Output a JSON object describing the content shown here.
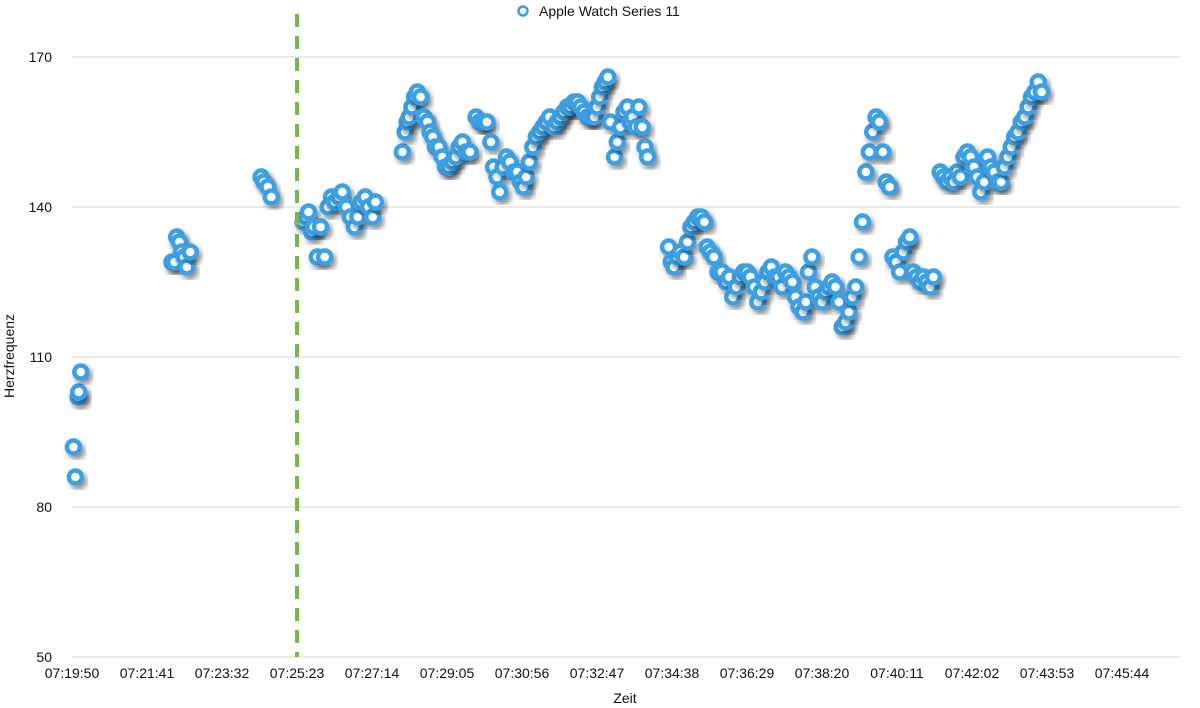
{
  "chart_data": {
    "type": "scatter",
    "title": "",
    "xlabel": "Zeit",
    "ylabel": "Herzfrequenz",
    "ylim": [
      50,
      170
    ],
    "yticks": [
      50,
      80,
      110,
      140,
      170
    ],
    "xticks": [
      "07:19:50",
      "07:21:41",
      "07:23:32",
      "07:25:23",
      "07:27:14",
      "07:29:05",
      "07:30:56",
      "07:32:47",
      "07:34:38",
      "07:36:29",
      "07:38:20",
      "07:40:11",
      "07:42:02",
      "07:43:53",
      "07:45:44"
    ],
    "xlim": [
      "07:19:50",
      "07:47:20"
    ],
    "grid": "horizontal",
    "legend_position": "top-center",
    "marker_line": {
      "x": "07:25:23",
      "color": "#7ab648",
      "style": "dashed"
    },
    "series": [
      {
        "name": "Apple Watch Series 11",
        "color": "#3aa0e6",
        "points": [
          [
            "07:19:52",
            92
          ],
          [
            "07:19:55",
            86
          ],
          [
            "07:19:59",
            102
          ],
          [
            "07:20:00",
            103
          ],
          [
            "07:20:03",
            107
          ],
          [
            "07:22:18",
            129
          ],
          [
            "07:22:22",
            129
          ],
          [
            "07:22:25",
            134
          ],
          [
            "07:22:29",
            133
          ],
          [
            "07:22:32",
            131
          ],
          [
            "07:22:36",
            130
          ],
          [
            "07:22:40",
            128
          ],
          [
            "07:22:45",
            131
          ],
          [
            "07:24:30",
            146
          ],
          [
            "07:24:34",
            145
          ],
          [
            "07:24:40",
            144
          ],
          [
            "07:24:45",
            142
          ],
          [
            "07:25:32",
            137
          ],
          [
            "07:25:36",
            138
          ],
          [
            "07:25:40",
            139
          ],
          [
            "07:25:45",
            135
          ],
          [
            "07:25:48",
            136
          ],
          [
            "07:25:53",
            130
          ],
          [
            "07:25:58",
            136
          ],
          [
            "07:26:04",
            130
          ],
          [
            "07:26:09",
            140
          ],
          [
            "07:26:14",
            142
          ],
          [
            "07:26:19",
            141
          ],
          [
            "07:26:25",
            142
          ],
          [
            "07:26:30",
            143
          ],
          [
            "07:26:36",
            140
          ],
          [
            "07:26:42",
            138
          ],
          [
            "07:26:48",
            136
          ],
          [
            "07:26:53",
            138
          ],
          [
            "07:26:58",
            141
          ],
          [
            "07:27:04",
            142
          ],
          [
            "07:27:09",
            140
          ],
          [
            "07:27:15",
            138
          ],
          [
            "07:27:19",
            141
          ],
          [
            "07:27:59",
            151
          ],
          [
            "07:28:03",
            155
          ],
          [
            "07:28:06",
            157
          ],
          [
            "07:28:09",
            158
          ],
          [
            "07:28:13",
            160
          ],
          [
            "07:28:17",
            162
          ],
          [
            "07:28:21",
            163
          ],
          [
            "07:28:26",
            162
          ],
          [
            "07:28:31",
            158
          ],
          [
            "07:28:36",
            157
          ],
          [
            "07:28:40",
            155
          ],
          [
            "07:28:44",
            154
          ],
          [
            "07:28:48",
            152
          ],
          [
            "07:28:53",
            152
          ],
          [
            "07:28:58",
            150
          ],
          [
            "07:29:03",
            148
          ],
          [
            "07:29:08",
            148
          ],
          [
            "07:29:13",
            149
          ],
          [
            "07:29:18",
            150
          ],
          [
            "07:29:23",
            152
          ],
          [
            "07:29:28",
            153
          ],
          [
            "07:29:33",
            151
          ],
          [
            "07:29:39",
            151
          ],
          [
            "07:29:48",
            158
          ],
          [
            "07:29:53",
            157
          ],
          [
            "07:29:58",
            157
          ],
          [
            "07:30:04",
            157
          ],
          [
            "07:30:10",
            153
          ],
          [
            "07:30:14",
            148
          ],
          [
            "07:30:19",
            146
          ],
          [
            "07:30:23",
            143
          ],
          [
            "07:30:28",
            148
          ],
          [
            "07:30:33",
            150
          ],
          [
            "07:30:38",
            149
          ],
          [
            "07:30:44",
            147
          ],
          [
            "07:30:49",
            147
          ],
          [
            "07:30:54",
            145
          ],
          [
            "07:30:58",
            144
          ],
          [
            "07:31:02",
            146
          ],
          [
            "07:31:07",
            149
          ],
          [
            "07:31:12",
            152
          ],
          [
            "07:31:17",
            154
          ],
          [
            "07:31:22",
            155
          ],
          [
            "07:31:27",
            156
          ],
          [
            "07:31:32",
            157
          ],
          [
            "07:31:37",
            158
          ],
          [
            "07:31:43",
            156
          ],
          [
            "07:31:48",
            157
          ],
          [
            "07:31:53",
            158
          ],
          [
            "07:31:58",
            159
          ],
          [
            "07:32:03",
            160
          ],
          [
            "07:32:08",
            160
          ],
          [
            "07:32:13",
            161
          ],
          [
            "07:32:18",
            161
          ],
          [
            "07:32:23",
            160
          ],
          [
            "07:32:28",
            159
          ],
          [
            "07:32:33",
            158
          ],
          [
            "07:32:38",
            158
          ],
          [
            "07:32:43",
            158
          ],
          [
            "07:32:47",
            160
          ],
          [
            "07:32:51",
            162
          ],
          [
            "07:32:55",
            164
          ],
          [
            "07:32:59",
            165
          ],
          [
            "07:33:03",
            166
          ],
          [
            "07:33:07",
            157
          ],
          [
            "07:33:13",
            150
          ],
          [
            "07:33:17",
            153
          ],
          [
            "07:33:22",
            156
          ],
          [
            "07:33:27",
            159
          ],
          [
            "07:33:32",
            160
          ],
          [
            "07:33:36",
            157
          ],
          [
            "07:33:40",
            158
          ],
          [
            "07:33:45",
            156
          ],
          [
            "07:33:49",
            160
          ],
          [
            "07:33:54",
            156
          ],
          [
            "07:33:58",
            152
          ],
          [
            "07:34:02",
            150
          ],
          [
            "07:34:33",
            132
          ],
          [
            "07:34:37",
            129
          ],
          [
            "07:34:41",
            128
          ],
          [
            "07:34:46",
            130
          ],
          [
            "07:34:51",
            131
          ],
          [
            "07:34:56",
            130
          ],
          [
            "07:35:01",
            133
          ],
          [
            "07:35:06",
            136
          ],
          [
            "07:35:11",
            137
          ],
          [
            "07:35:16",
            138
          ],
          [
            "07:35:21",
            138
          ],
          [
            "07:35:26",
            137
          ],
          [
            "07:35:30",
            132
          ],
          [
            "07:35:35",
            131
          ],
          [
            "07:35:40",
            130
          ],
          [
            "07:35:46",
            127
          ],
          [
            "07:35:52",
            127
          ],
          [
            "07:35:58",
            125
          ],
          [
            "07:36:03",
            126
          ],
          [
            "07:36:08",
            122
          ],
          [
            "07:36:13",
            124
          ],
          [
            "07:36:19",
            126
          ],
          [
            "07:36:24",
            127
          ],
          [
            "07:36:29",
            127
          ],
          [
            "07:36:34",
            126
          ],
          [
            "07:36:40",
            124
          ],
          [
            "07:36:45",
            121
          ],
          [
            "07:36:50",
            123
          ],
          [
            "07:36:55",
            125
          ],
          [
            "07:37:00",
            127
          ],
          [
            "07:37:05",
            128
          ],
          [
            "07:37:10",
            126
          ],
          [
            "07:37:16",
            126
          ],
          [
            "07:37:21",
            124
          ],
          [
            "07:37:26",
            127
          ],
          [
            "07:37:31",
            126
          ],
          [
            "07:37:36",
            125
          ],
          [
            "07:37:41",
            122
          ],
          [
            "07:37:46",
            120
          ],
          [
            "07:37:52",
            119
          ],
          [
            "07:37:56",
            121
          ],
          [
            "07:38:00",
            127
          ],
          [
            "07:38:05",
            130
          ],
          [
            "07:38:10",
            124
          ],
          [
            "07:38:15",
            122
          ],
          [
            "07:38:20",
            121
          ],
          [
            "07:38:25",
            123
          ],
          [
            "07:38:30",
            124
          ],
          [
            "07:38:35",
            125
          ],
          [
            "07:38:40",
            124
          ],
          [
            "07:38:45",
            121
          ],
          [
            "07:38:50",
            116
          ],
          [
            "07:38:55",
            117
          ],
          [
            "07:39:00",
            119
          ],
          [
            "07:39:05",
            122
          ],
          [
            "07:39:10",
            124
          ],
          [
            "07:39:15",
            130
          ],
          [
            "07:39:20",
            137
          ],
          [
            "07:39:25",
            147
          ],
          [
            "07:39:30",
            151
          ],
          [
            "07:39:35",
            155
          ],
          [
            "07:39:40",
            158
          ],
          [
            "07:39:45",
            157
          ],
          [
            "07:39:50",
            151
          ],
          [
            "07:39:55",
            145
          ],
          [
            "07:40:00",
            144
          ],
          [
            "07:40:05",
            130
          ],
          [
            "07:40:10",
            129
          ],
          [
            "07:40:15",
            127
          ],
          [
            "07:40:20",
            131
          ],
          [
            "07:40:25",
            133
          ],
          [
            "07:40:30",
            134
          ],
          [
            "07:40:35",
            127
          ],
          [
            "07:40:40",
            126
          ],
          [
            "07:40:45",
            125
          ],
          [
            "07:40:50",
            126
          ],
          [
            "07:40:55",
            125
          ],
          [
            "07:41:00",
            124
          ],
          [
            "07:41:05",
            126
          ],
          [
            "07:41:15",
            147
          ],
          [
            "07:41:20",
            146
          ],
          [
            "07:41:25",
            145
          ],
          [
            "07:41:30",
            146
          ],
          [
            "07:41:35",
            145
          ],
          [
            "07:41:40",
            147
          ],
          [
            "07:41:45",
            146
          ],
          [
            "07:41:50",
            150
          ],
          [
            "07:41:55",
            151
          ],
          [
            "07:42:00",
            150
          ],
          [
            "07:42:05",
            148
          ],
          [
            "07:42:10",
            146
          ],
          [
            "07:42:15",
            143
          ],
          [
            "07:42:20",
            145
          ],
          [
            "07:42:25",
            150
          ],
          [
            "07:42:30",
            148
          ],
          [
            "07:42:35",
            147
          ],
          [
            "07:42:40",
            145
          ],
          [
            "07:42:45",
            145
          ],
          [
            "07:42:50",
            148
          ],
          [
            "07:42:55",
            150
          ],
          [
            "07:43:00",
            152
          ],
          [
            "07:43:05",
            154
          ],
          [
            "07:43:10",
            155
          ],
          [
            "07:43:15",
            157
          ],
          [
            "07:43:20",
            158
          ],
          [
            "07:43:25",
            160
          ],
          [
            "07:43:30",
            162
          ],
          [
            "07:43:35",
            163
          ],
          [
            "07:43:40",
            165
          ],
          [
            "07:43:45",
            163
          ]
        ]
      }
    ]
  }
}
